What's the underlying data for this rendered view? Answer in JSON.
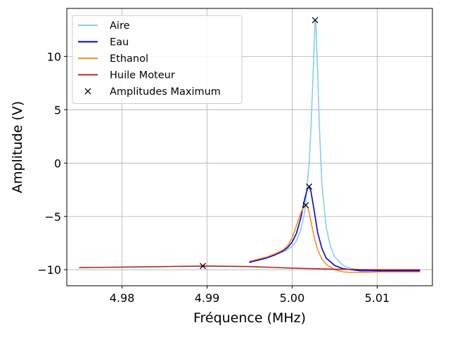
{
  "chart_data": {
    "type": "line",
    "title": "",
    "xlabel": "Fréquence (MHz)",
    "ylabel": "Amplitude (V)",
    "xlim": [
      4.9735,
      5.0165
    ],
    "ylim": [
      -11.5,
      14.5
    ],
    "xticks": [
      4.98,
      4.99,
      5.0,
      5.01
    ],
    "xtick_labels": [
      "4.98",
      "4.99",
      "5.00",
      "5.01"
    ],
    "yticks": [
      -10,
      -5,
      0,
      5,
      10
    ],
    "ytick_labels": [
      "−10",
      "−5",
      "0",
      "5",
      "10"
    ],
    "grid": true,
    "legend_position": "top-left",
    "series": [
      {
        "name": "Aire",
        "color": "#87ceeb",
        "x": [
          4.995,
          4.996,
          4.997,
          4.998,
          4.999,
          4.9995,
          5.0,
          5.0005,
          5.001,
          5.0015,
          5.002,
          5.0022,
          5.0025,
          5.0027,
          5.0028,
          5.003,
          5.0032,
          5.0035,
          5.004,
          5.0045,
          5.005,
          5.006,
          5.007,
          5.008,
          5.009,
          5.01,
          5.011,
          5.012,
          5.013,
          5.014,
          5.015
        ],
        "y": [
          -9.3,
          -9.1,
          -8.9,
          -8.6,
          -8.3,
          -8.1,
          -7.8,
          -7.3,
          -6.3,
          -4.5,
          0.0,
          3.0,
          9.0,
          13.4,
          13.0,
          8.5,
          3.5,
          -2.0,
          -6.0,
          -7.8,
          -8.8,
          -9.6,
          -9.9,
          -10.0,
          -10.1,
          -10.1,
          -10.1,
          -10.1,
          -10.1,
          -10.1,
          -10.1
        ]
      },
      {
        "name": "Eau",
        "color": "#0000dd",
        "x": [
          4.995,
          4.996,
          4.997,
          4.998,
          4.999,
          4.9995,
          5.0,
          5.0005,
          5.001,
          5.0015,
          5.0018,
          5.002,
          5.0022,
          5.0025,
          5.003,
          5.0035,
          5.004,
          5.005,
          5.006,
          5.007,
          5.008,
          5.009,
          5.01,
          5.011,
          5.012,
          5.013,
          5.014,
          5.015
        ],
        "y": [
          -9.3,
          -9.1,
          -8.9,
          -8.6,
          -8.2,
          -7.9,
          -7.4,
          -6.6,
          -5.2,
          -3.3,
          -2.4,
          -2.2,
          -2.6,
          -4.0,
          -6.5,
          -8.0,
          -8.9,
          -9.6,
          -9.9,
          -10.0,
          -10.1,
          -10.1,
          -10.1,
          -10.1,
          -10.1,
          -10.1,
          -10.1,
          -10.1
        ]
      },
      {
        "name": "Ethanol",
        "color": "#ff8c1a",
        "x": [
          4.995,
          4.996,
          4.997,
          4.998,
          4.999,
          4.9995,
          5.0,
          5.0005,
          5.001,
          5.0013,
          5.0016,
          5.0018,
          5.002,
          5.0023,
          5.0026,
          5.003,
          5.0035,
          5.004,
          5.005,
          5.006,
          5.007,
          5.008,
          5.009,
          5.01,
          5.011,
          5.012,
          5.013,
          5.014,
          5.015
        ],
        "y": [
          -9.2,
          -9.0,
          -8.8,
          -8.5,
          -8.1,
          -7.7,
          -7.0,
          -5.9,
          -4.7,
          -4.2,
          -3.95,
          -4.1,
          -4.6,
          -5.8,
          -7.0,
          -8.1,
          -9.0,
          -9.5,
          -10.0,
          -10.2,
          -10.25,
          -10.25,
          -10.25,
          -10.2,
          -10.2,
          -10.2,
          -10.2,
          -10.2,
          -10.2
        ]
      },
      {
        "name": "Huile Moteur",
        "color": "#a52a2a",
        "x": [
          4.975,
          4.98,
          4.985,
          4.99,
          4.995,
          5.0,
          5.005,
          5.01,
          5.015
        ],
        "y": [
          -9.8,
          -9.75,
          -9.7,
          -9.65,
          -9.7,
          -9.85,
          -9.95,
          -10.0,
          -10.0
        ]
      }
    ],
    "markers": {
      "name": "Amplitudes Maximum",
      "symbol": "x",
      "color": "#000000",
      "x": [
        5.0027,
        5.002,
        5.0016,
        4.9895
      ],
      "y": [
        13.4,
        -2.2,
        -3.95,
        -9.65
      ]
    }
  }
}
